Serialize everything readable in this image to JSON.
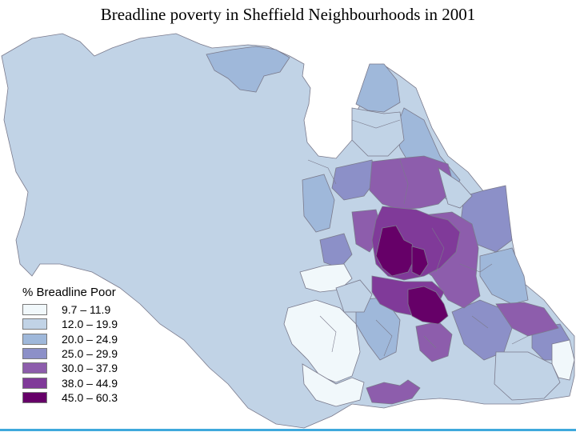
{
  "title": "Breadline poverty in Sheffield Neighbourhoods in 2001",
  "legend": {
    "title": "% Breadline Poor",
    "classes": [
      {
        "label": "9.7 – 11.9",
        "color": "#f1f8fb"
      },
      {
        "label": "12.0 – 19.9",
        "color": "#c1d3e6"
      },
      {
        "label": "20.0 – 24.9",
        "color": "#9fb8da"
      },
      {
        "label": "25.0 – 29.9",
        "color": "#8c90c8"
      },
      {
        "label": "30.0 – 37.9",
        "color": "#8d5dac"
      },
      {
        "label": "38.0 – 44.9",
        "color": "#803a99"
      },
      {
        "label": "45.0 – 60.3",
        "color": "#660068"
      }
    ]
  },
  "colors": {
    "boundary": "#7a7a8c",
    "accent_line": "#3fa9dc"
  }
}
